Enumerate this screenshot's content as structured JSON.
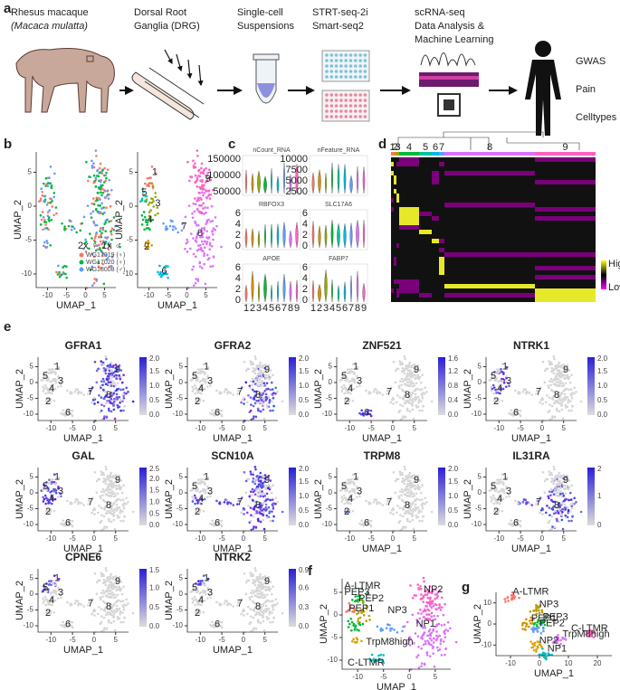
{
  "panel_labels": [
    "a",
    "b",
    "c",
    "d",
    "e",
    "f",
    "g"
  ],
  "pipeline": {
    "steps": [
      {
        "lines": [
          "Rhesus macaque",
          "(Macaca mulatta)"
        ]
      },
      {
        "lines": [
          "Dorsal Root",
          "Ganglia (DRG)"
        ]
      },
      {
        "lines": [
          "Single-cell",
          "Suspensions"
        ]
      },
      {
        "lines": [
          "STRT-seq-2i",
          "Smart-seq2"
        ]
      },
      {
        "lines": [
          "scRNA-seq",
          "Data Analysis &",
          "Machine Learning"
        ]
      }
    ],
    "outcomes": [
      "GWAS",
      "Pain",
      "Celltypes"
    ]
  },
  "umap_axis": {
    "x_label": "UMAP_1",
    "y_label": "UMAP_2",
    "x_ticks": [
      "-10",
      "-5",
      "0",
      "5"
    ],
    "y_ticks": [
      "5",
      "0",
      "-5",
      "-10"
    ]
  },
  "clusters": [
    "1",
    "2",
    "3",
    "4",
    "5",
    "6",
    "7",
    "8",
    "9"
  ],
  "panel_b": {
    "legend_title": "2x ♀ 1x ♂",
    "legend": [
      "WG17019 (♀)",
      "WG17020 (♀)",
      "WG18008 (♂)"
    ]
  },
  "panel_c": {
    "plots": [
      {
        "title": "nCount_RNA",
        "y_ticks": [
          "150000",
          "100000",
          "50000"
        ]
      },
      {
        "title": "nFeature_RNA",
        "y_ticks": [
          "10000",
          "7500",
          "5000",
          "2500"
        ]
      },
      {
        "title": "RBFOX3",
        "y_ticks": [
          "6",
          "4",
          "2",
          "0"
        ]
      },
      {
        "title": "SLC17A6",
        "y_ticks": [
          "6",
          "4",
          "2",
          "0"
        ]
      },
      {
        "title": "APOE",
        "y_ticks": [
          "6",
          "4",
          "2",
          "0"
        ]
      },
      {
        "title": "FABP7",
        "y_ticks": [
          "6",
          "4",
          "2",
          "0"
        ]
      }
    ]
  },
  "panel_d": {
    "legend": [
      "High",
      "Low"
    ]
  },
  "panel_e": {
    "genes": [
      {
        "name": "GFRA1",
        "scale": [
          "0.0",
          "0.5",
          "1.0",
          "1.5",
          "2.0"
        ]
      },
      {
        "name": "GFRA2",
        "scale": [
          "0.0",
          "0.5",
          "1.0",
          "1.5",
          "2.0"
        ]
      },
      {
        "name": "ZNF521",
        "scale": [
          "0.0",
          "0.4",
          "0.8",
          "1.2",
          "1.6"
        ]
      },
      {
        "name": "NTRK1",
        "scale": [
          "0.0",
          "0.5",
          "1.0",
          "1.5",
          "2.0"
        ]
      },
      {
        "name": "GAL",
        "scale": [
          "0.0",
          "0.5",
          "1.0",
          "1.5",
          "2.0",
          "2.5"
        ]
      },
      {
        "name": "SCN10A",
        "scale": [
          "0.0",
          "0.5",
          "1.0",
          "1.5",
          "2.0"
        ]
      },
      {
        "name": "TRPM8",
        "scale": [
          "0.0",
          "0.5",
          "1.0",
          "1.5",
          "2.0"
        ]
      },
      {
        "name": "IL31RA",
        "scale": [
          "0",
          "1",
          "2"
        ]
      },
      {
        "name": "CPNE6",
        "scale": [
          "0.0",
          "0.5",
          "1.0",
          "1.5"
        ]
      },
      {
        "name": "NTRK2",
        "scale": [
          "0.0",
          "0.3",
          "0.6",
          "0.9"
        ]
      }
    ]
  },
  "panel_f": {
    "labels": [
      "A-LTMR",
      "PEP3",
      "PEP2",
      "PEP1",
      "NP3",
      "NP2",
      "NP1",
      "TrpM8high",
      "C-LTMR"
    ]
  },
  "panel_g": {
    "labels": [
      "A-LTMR",
      "NP3",
      "PEP1",
      "PEP3",
      "PEP2",
      "C-LTMR",
      "TrpM8high",
      "NP2",
      "NP1"
    ],
    "x_ticks": [
      "-10",
      "0",
      "10",
      "20"
    ],
    "y_ticks": [
      "10",
      "0",
      "-10"
    ]
  }
}
